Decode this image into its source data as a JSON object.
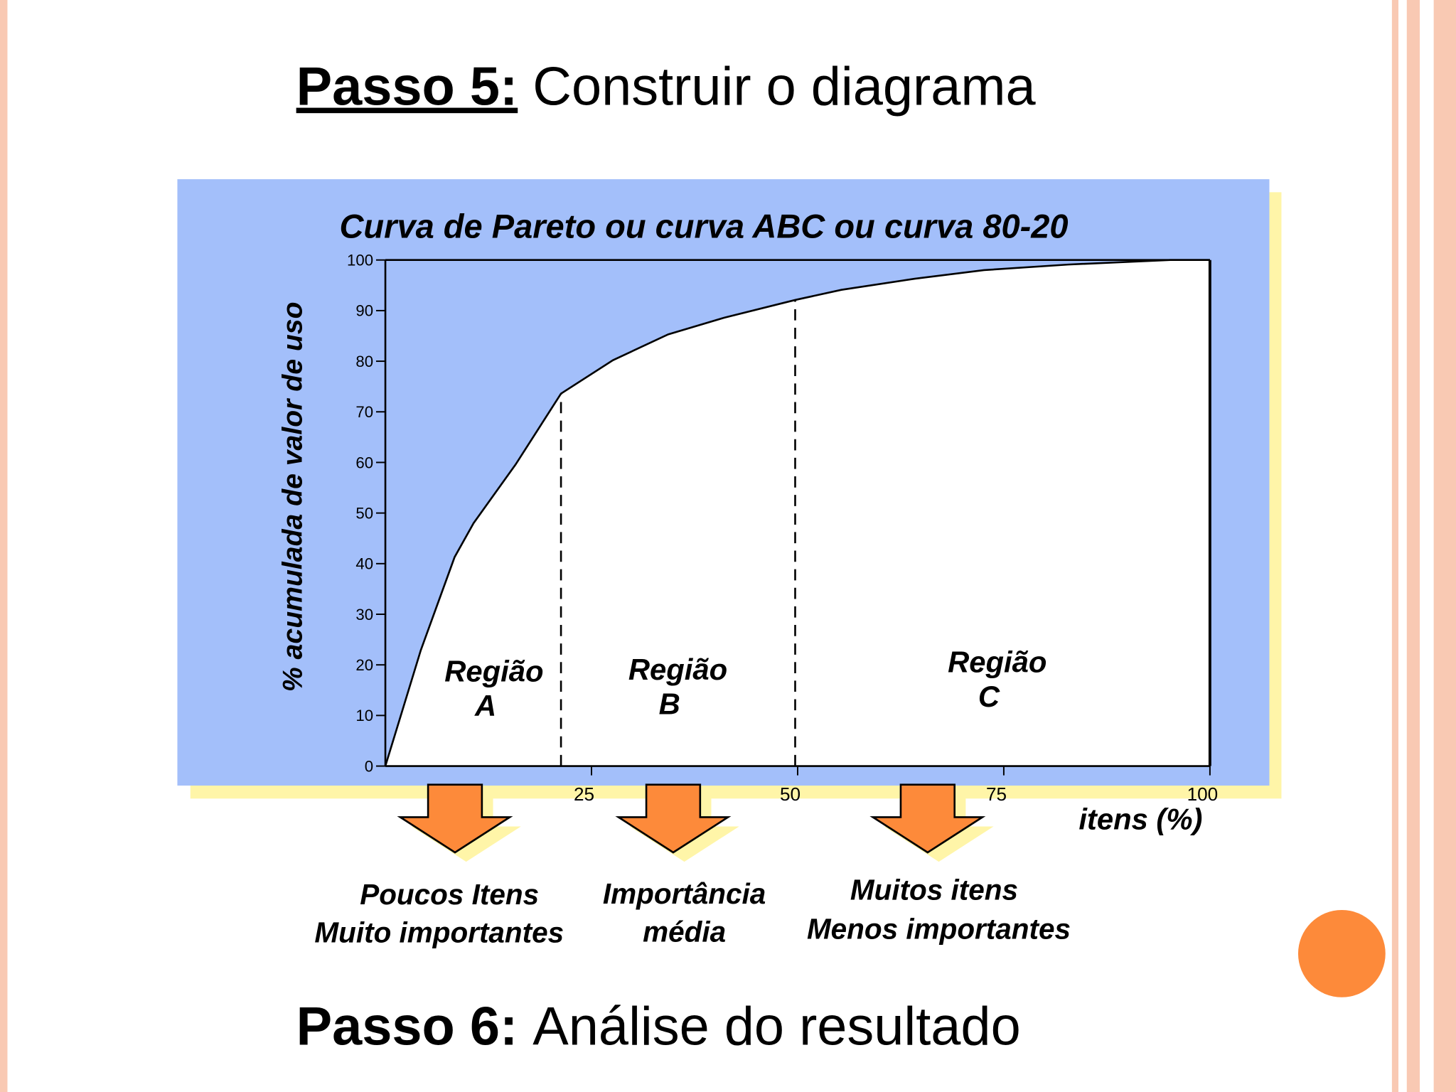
{
  "slide": {
    "step5_label": "Passo 5:",
    "step5_text": "Construir o diagrama",
    "captions": [
      [
        "Poucos Itens",
        "Muito importantes"
      ],
      [
        "Importância",
        "média"
      ],
      [
        "Muitos itens",
        "Menos importantes"
      ]
    ],
    "step6_label": "Passo 6:",
    "step6_text": "Análise do resultado"
  },
  "chart_data": {
    "type": "line",
    "title": "Curva de Pareto ou curva ABC ou curva 80-20",
    "y_label": "% acumulada de valor de uso",
    "x_label": "itens (%)",
    "x": [
      0,
      4.3,
      8.4,
      10.7,
      15.8,
      21.3,
      27.6,
      34.3,
      41.1,
      49.7,
      55.3,
      64.2,
      72.6,
      82.8,
      95.2,
      100
    ],
    "values": [
      0,
      22.9,
      41.3,
      48,
      59.6,
      73.6,
      80.2,
      85.3,
      88.6,
      92.1,
      94.1,
      96.3,
      98,
      99.1,
      100,
      100
    ],
    "color": "#000000",
    "xlim": [
      0,
      100
    ],
    "xticks": [
      25,
      50,
      75,
      100
    ],
    "ylim": [
      0,
      100
    ],
    "yticks": [
      0,
      10,
      20,
      30,
      40,
      50,
      60,
      70,
      80,
      90,
      100
    ],
    "region_bounds": [
      21.3,
      49.7
    ],
    "regions": [
      [
        "Região",
        "A"
      ],
      [
        "Região",
        "B"
      ],
      [
        "Região",
        "C"
      ]
    ]
  }
}
